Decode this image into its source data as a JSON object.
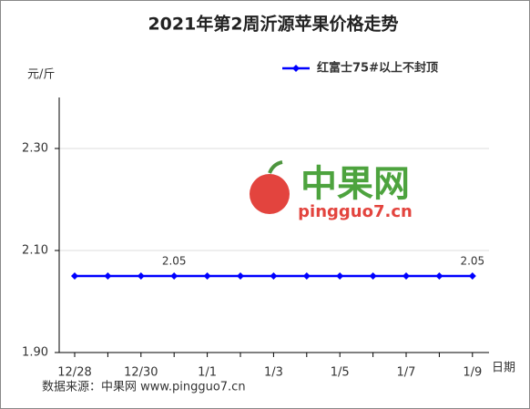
{
  "chart_data": {
    "type": "line",
    "title": "2021年第2周沂源苹果价格走势",
    "y_label": "元/斤",
    "x_label": "日期",
    "categories": [
      "12/28",
      null,
      "12/30",
      null,
      "1/1",
      null,
      "1/3",
      null,
      "1/5",
      null,
      "1/7",
      null,
      "1/9"
    ],
    "series": [
      {
        "name": "红富士75#以上不封顶",
        "color": "#0000ff",
        "values": [
          2.05,
          2.05,
          2.05,
          2.05,
          2.05,
          2.05,
          2.05,
          2.05,
          2.05,
          2.05,
          2.05,
          2.05,
          2.05
        ]
      }
    ],
    "data_label_indices": [
      3,
      12
    ],
    "ylim": [
      1.9,
      2.4
    ],
    "yticks": [
      {
        "value": 1.9,
        "label": "1.90"
      },
      {
        "value": 2.1,
        "label": "2.10"
      },
      {
        "value": 2.3,
        "label": "2.30"
      }
    ],
    "grid": true,
    "legend": "top-right",
    "source": "数据来源：中果网 www.pingguo7.cn",
    "watermark": {
      "brand": "中果网",
      "site": "pingguo7.cn"
    }
  }
}
